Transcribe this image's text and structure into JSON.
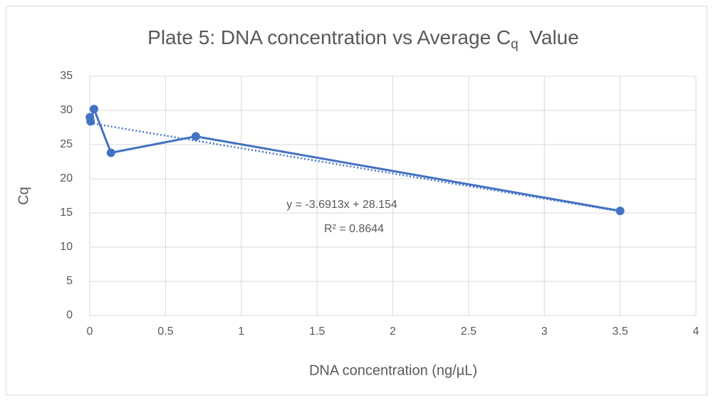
{
  "chart_data": {
    "type": "scatter",
    "title_parts": [
      "Plate 5:  DNA concentration vs Average C",
      "q",
      "  Value"
    ],
    "x_label": "DNA concentration (ng/µL)",
    "y_label": "Cq",
    "series": [
      {
        "name": "Average Cq",
        "color": "#4472c4",
        "x": [
          0.00112,
          0.0056,
          0.028,
          0.14,
          0.7,
          3.5
        ],
        "values": [
          29.0,
          28.4,
          30.2,
          23.8,
          26.2,
          15.3
        ]
      }
    ],
    "trendline": {
      "slope": -3.6913,
      "intercept": 28.154,
      "equation": "y = -3.6913x + 28.154",
      "r_squared": "R² = 0.8644"
    },
    "xlim": [
      0,
      4
    ],
    "xticks": [
      0,
      0.5,
      1,
      1.5,
      2,
      2.5,
      3,
      3.5,
      4
    ],
    "ylim": [
      0,
      35
    ],
    "yticks": [
      0,
      5,
      10,
      15,
      20,
      25,
      30,
      35
    ],
    "grid": true
  }
}
